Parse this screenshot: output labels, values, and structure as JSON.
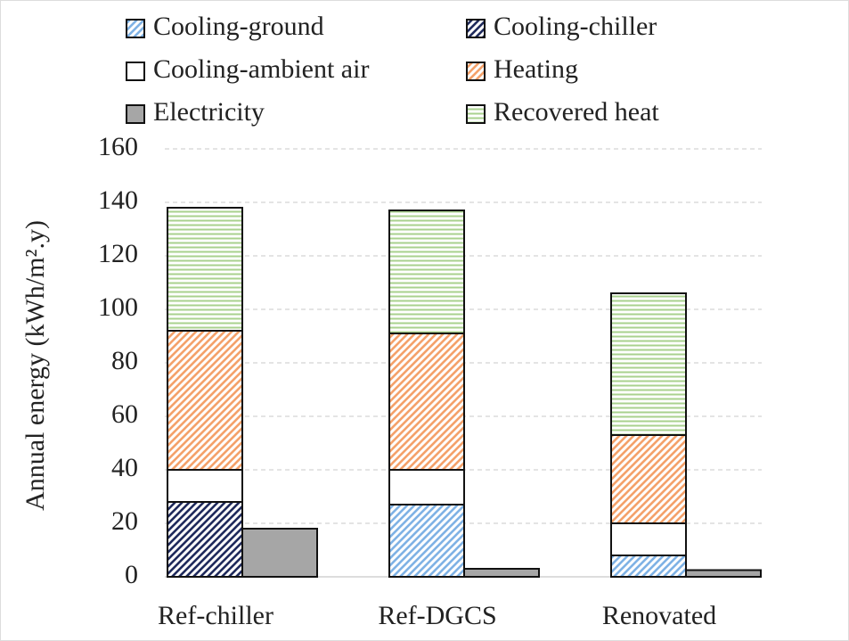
{
  "chart_data": {
    "type": "bar",
    "stacked": true,
    "ylabel": "Annual energy (kWh/m².y)",
    "categories": [
      "Ref-chiller",
      "Ref-DGCS",
      "Renovated"
    ],
    "ylim": [
      0,
      160
    ],
    "yticks": [
      0,
      20,
      40,
      60,
      80,
      100,
      120,
      140,
      160
    ],
    "grid": true,
    "series": [
      {
        "name": "Cooling-ground",
        "color": "#7fb2e5",
        "pattern": "diagonal",
        "group": 0,
        "values": [
          0,
          27,
          8
        ]
      },
      {
        "name": "Cooling-chiller",
        "color": "#1f2a5c",
        "pattern": "diagonal",
        "group": 0,
        "values": [
          28,
          0,
          0
        ]
      },
      {
        "name": "Cooling-ambient air",
        "color": "#ffffff",
        "pattern": "solid",
        "group": 0,
        "values": [
          12,
          13,
          12
        ]
      },
      {
        "name": "Heating",
        "color": "#f4a16a",
        "pattern": "diagonal",
        "group": 0,
        "values": [
          52,
          51,
          33
        ]
      },
      {
        "name": "Electricity",
        "color": "#a6a6a6",
        "pattern": "solid",
        "group": 1,
        "values": [
          18,
          3,
          2.5
        ]
      },
      {
        "name": "Recovered heat",
        "color": "#a9d18e",
        "pattern": "horizontal",
        "group": 0,
        "values": [
          46,
          46,
          53
        ]
      }
    ]
  }
}
